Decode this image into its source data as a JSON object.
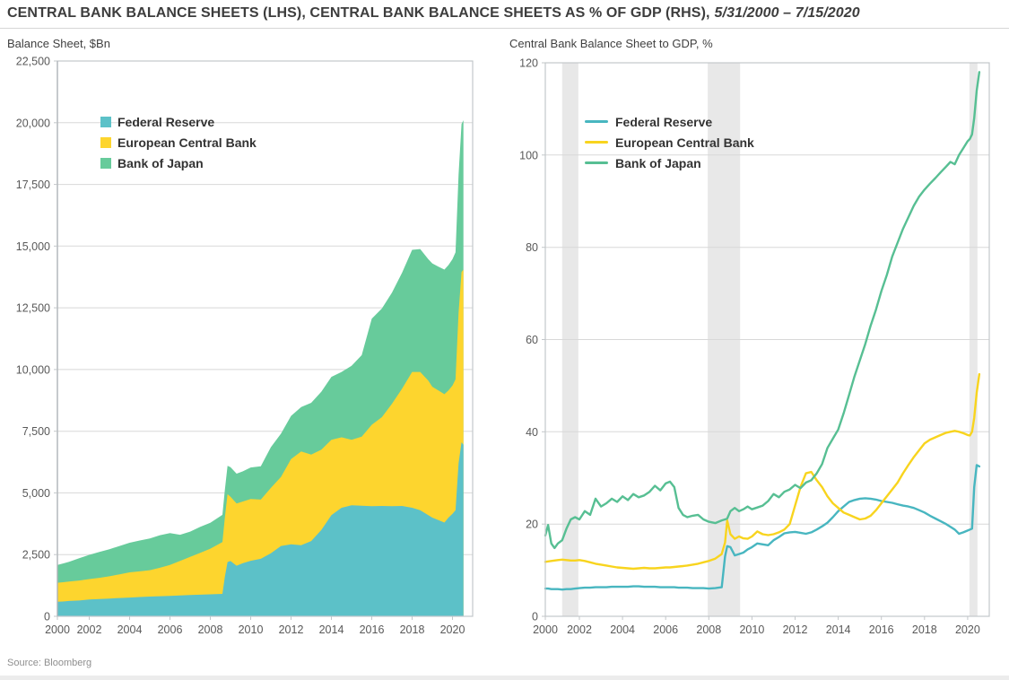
{
  "header": {
    "title": "CENTRAL BANK BALANCE SHEETS (LHS), CENTRAL BANK BALANCE SHEETS AS % OF GDP (RHS),",
    "date_range": "5/31/2000 – 7/15/2020"
  },
  "source": "Source: Bloomberg",
  "colors": {
    "fed_area": "#5cc1c8",
    "ecb_area": "#fdd52e",
    "boj_area": "#67cb9b",
    "fed_line": "#48b6c0",
    "ecb_line": "#f8d41e",
    "boj_line": "#57bf93",
    "grid": "#d8d8d8",
    "band": "#e8e8e8",
    "border": "#c3c7ca",
    "y_axis": "#a9aeb3",
    "axis_text": "#595959"
  },
  "chart_data": [
    {
      "id": "lhs",
      "type": "area",
      "stacked": true,
      "title": "Balance Sheet, $Bn",
      "xlim": [
        2000.42,
        2021
      ],
      "ylim": [
        0,
        22500
      ],
      "grid": true,
      "legend_position": "upper-left-inside",
      "xticks": [
        2000,
        2002,
        2004,
        2006,
        2008,
        2010,
        2012,
        2014,
        2016,
        2018,
        2020
      ],
      "yticks": [
        {
          "v": 0,
          "label": "0"
        },
        {
          "v": 2500,
          "label": "2,500"
        },
        {
          "v": 5000,
          "label": "5,000"
        },
        {
          "v": 7500,
          "label": "7,500"
        },
        {
          "v": 10000,
          "label": "10,000"
        },
        {
          "v": 12500,
          "label": "12,500"
        },
        {
          "v": 15000,
          "label": "15,000"
        },
        {
          "v": 17500,
          "label": "17,500"
        },
        {
          "v": 20000,
          "label": "20,000"
        },
        {
          "v": 22500,
          "label": "22,500"
        }
      ],
      "legend": [
        {
          "name": "Federal Reserve",
          "color": "fed_area",
          "swatch": "square"
        },
        {
          "name": "European Central Bank",
          "color": "ecb_area",
          "swatch": "square"
        },
        {
          "name": "Bank of Japan",
          "color": "boj_area",
          "swatch": "square"
        }
      ],
      "x": [
        2000.42,
        2000.7,
        2001,
        2001.5,
        2002,
        2002.5,
        2003,
        2003.5,
        2004,
        2004.5,
        2005,
        2005.5,
        2006,
        2006.5,
        2007,
        2007.5,
        2008,
        2008.6,
        2008.72,
        2008.85,
        2009,
        2009.3,
        2009.6,
        2010,
        2010.5,
        2011,
        2011.5,
        2012,
        2012.5,
        2013,
        2013.5,
        2014,
        2014.5,
        2015,
        2015.5,
        2016,
        2016.5,
        2017,
        2017.5,
        2018,
        2018.4,
        2018.8,
        2019,
        2019.3,
        2019.6,
        2019.8,
        2020,
        2020.15,
        2020.3,
        2020.45,
        2020.54
      ],
      "series": [
        {
          "name": "Federal Reserve",
          "color": "fed_area",
          "values": [
            590,
            600,
            620,
            640,
            680,
            700,
            720,
            740,
            760,
            780,
            800,
            815,
            830,
            845,
            860,
            875,
            890,
            910,
            1600,
            2200,
            2240,
            2050,
            2150,
            2250,
            2330,
            2550,
            2850,
            2920,
            2880,
            3050,
            3500,
            4100,
            4400,
            4500,
            4480,
            4460,
            4470,
            4460,
            4470,
            4400,
            4300,
            4100,
            4000,
            3900,
            3800,
            4000,
            4150,
            4300,
            6200,
            7050,
            6950
          ]
        },
        {
          "name": "European Central Bank",
          "color": "ecb_area",
          "values": [
            770,
            780,
            790,
            810,
            830,
            860,
            900,
            960,
            1020,
            1040,
            1070,
            1150,
            1250,
            1400,
            1550,
            1700,
            1850,
            2100,
            2400,
            2750,
            2600,
            2520,
            2500,
            2500,
            2400,
            2650,
            2800,
            3450,
            3800,
            3500,
            3250,
            3050,
            2850,
            2650,
            2800,
            3300,
            3600,
            4150,
            4750,
            5500,
            5600,
            5450,
            5300,
            5250,
            5200,
            5150,
            5200,
            5300,
            6100,
            6900,
            7100
          ]
        },
        {
          "name": "Bank of Japan",
          "color": "boj_area",
          "values": [
            720,
            760,
            800,
            900,
            980,
            1050,
            1100,
            1150,
            1200,
            1250,
            1280,
            1320,
            1290,
            1060,
            1020,
            1050,
            1050,
            1100,
            1120,
            1150,
            1200,
            1210,
            1220,
            1280,
            1350,
            1650,
            1750,
            1750,
            1800,
            2100,
            2350,
            2550,
            2650,
            3000,
            3300,
            4300,
            4400,
            4500,
            4700,
            4950,
            4980,
            4920,
            5000,
            5020,
            5050,
            5080,
            5120,
            5150,
            5600,
            6000,
            6050
          ]
        }
      ]
    },
    {
      "id": "rhs",
      "type": "line",
      "title": "Central Bank Balance Sheet to GDP, %",
      "xlim": [
        2000.42,
        2021
      ],
      "ylim": [
        0,
        120
      ],
      "grid": true,
      "legend_position": "upper-left-inside",
      "bands": [
        [
          2001.2,
          2001.95
        ],
        [
          2007.95,
          2009.45
        ],
        [
          2020.08,
          2020.45
        ]
      ],
      "xticks": [
        2000,
        2002,
        2004,
        2006,
        2008,
        2010,
        2012,
        2014,
        2016,
        2018,
        2020
      ],
      "yticks": [
        {
          "v": 0,
          "label": "0"
        },
        {
          "v": 20,
          "label": "20"
        },
        {
          "v": 40,
          "label": "40"
        },
        {
          "v": 60,
          "label": "60"
        },
        {
          "v": 80,
          "label": "80"
        },
        {
          "v": 100,
          "label": "100"
        },
        {
          "v": 120,
          "label": "120"
        }
      ],
      "legend": [
        {
          "name": "Federal Reserve",
          "color": "fed_line",
          "swatch": "line"
        },
        {
          "name": "European Central Bank",
          "color": "ecb_line",
          "swatch": "line"
        },
        {
          "name": "Bank of Japan",
          "color": "boj_line",
          "swatch": "line"
        }
      ],
      "x": [
        2000.42,
        2000.55,
        2000.7,
        2000.85,
        2001,
        2001.2,
        2001.4,
        2001.6,
        2001.8,
        2002,
        2002.25,
        2002.5,
        2002.75,
        2003,
        2003.25,
        2003.5,
        2003.75,
        2004,
        2004.25,
        2004.5,
        2004.75,
        2005,
        2005.25,
        2005.5,
        2005.75,
        2006,
        2006.2,
        2006.4,
        2006.6,
        2006.8,
        2007,
        2007.25,
        2007.5,
        2007.75,
        2008,
        2008.3,
        2008.6,
        2008.75,
        2008.85,
        2009,
        2009.2,
        2009.4,
        2009.6,
        2009.8,
        2010,
        2010.25,
        2010.5,
        2010.75,
        2011,
        2011.25,
        2011.5,
        2011.75,
        2012,
        2012.25,
        2012.5,
        2012.75,
        2013,
        2013.25,
        2013.5,
        2013.75,
        2014,
        2014.25,
        2014.5,
        2014.75,
        2015,
        2015.25,
        2015.5,
        2015.75,
        2016,
        2016.25,
        2016.5,
        2016.75,
        2017,
        2017.25,
        2017.5,
        2017.75,
        2018,
        2018.25,
        2018.5,
        2018.75,
        2019,
        2019.2,
        2019.4,
        2019.6,
        2019.8,
        2020,
        2020.1,
        2020.2,
        2020.3,
        2020.42,
        2020.54
      ],
      "series": [
        {
          "name": "Federal Reserve",
          "color": "fed_line",
          "values": [
            6,
            6,
            5.9,
            5.9,
            5.9,
            5.8,
            5.9,
            5.9,
            6,
            6.1,
            6.2,
            6.2,
            6.3,
            6.3,
            6.3,
            6.4,
            6.4,
            6.4,
            6.4,
            6.5,
            6.5,
            6.4,
            6.4,
            6.4,
            6.3,
            6.3,
            6.3,
            6.3,
            6.2,
            6.2,
            6.2,
            6.1,
            6.1,
            6.1,
            6,
            6.1,
            6.3,
            13,
            15.2,
            15,
            13.2,
            13.5,
            13.8,
            14.5,
            15,
            15.8,
            15.6,
            15.4,
            16.5,
            17.2,
            18,
            18.2,
            18.3,
            18.1,
            17.9,
            18.2,
            18.8,
            19.5,
            20.3,
            21.5,
            22.8,
            23.8,
            24.8,
            25.2,
            25.5,
            25.6,
            25.5,
            25.3,
            25,
            24.8,
            24.6,
            24.3,
            24,
            23.8,
            23.5,
            23,
            22.5,
            21.8,
            21.2,
            20.6,
            20,
            19.4,
            18.8,
            17.9,
            18.2,
            18.6,
            18.8,
            19,
            28,
            32.8,
            32.5
          ]
        },
        {
          "name": "European Central Bank",
          "color": "ecb_line",
          "values": [
            11.8,
            11.9,
            12,
            12.1,
            12.2,
            12.3,
            12.2,
            12.1,
            12.1,
            12.2,
            12,
            11.7,
            11.4,
            11.2,
            11,
            10.8,
            10.6,
            10.5,
            10.4,
            10.3,
            10.4,
            10.5,
            10.4,
            10.4,
            10.5,
            10.6,
            10.6,
            10.7,
            10.8,
            10.9,
            11,
            11.2,
            11.4,
            11.7,
            12,
            12.5,
            13.5,
            16,
            20.8,
            17.8,
            16.8,
            17.3,
            16.9,
            16.8,
            17.3,
            18.4,
            17.8,
            17.6,
            17.8,
            18.2,
            18.8,
            20,
            24,
            28,
            31,
            31.3,
            29.5,
            28,
            26,
            24.5,
            23.5,
            22.5,
            22,
            21.5,
            21,
            21.2,
            21.8,
            23,
            24.5,
            26,
            27.5,
            29,
            31,
            32.8,
            34.5,
            36,
            37.5,
            38.3,
            38.8,
            39.3,
            39.8,
            40,
            40.2,
            40,
            39.7,
            39.3,
            39.2,
            40,
            43,
            48.5,
            52.5
          ]
        },
        {
          "name": "Bank of Japan",
          "color": "boj_line",
          "values": [
            17.5,
            19.8,
            15.8,
            14.8,
            15.8,
            16.5,
            19,
            21,
            21.5,
            21,
            22.8,
            22,
            25.5,
            23.8,
            24.5,
            25.5,
            24.8,
            26,
            25.2,
            26.5,
            25.8,
            26.2,
            27,
            28.3,
            27.3,
            28.8,
            29.2,
            28,
            23.5,
            22,
            21.5,
            21.8,
            22,
            21,
            20.5,
            20.2,
            20.8,
            21,
            21.2,
            22.8,
            23.5,
            22.8,
            23.2,
            23.8,
            23.2,
            23.6,
            24,
            25,
            26.5,
            25.8,
            27,
            27.5,
            28.5,
            27.8,
            29,
            29.5,
            31,
            33,
            36.5,
            38.5,
            40.5,
            44,
            48,
            52,
            55.5,
            59,
            63,
            66.5,
            70.5,
            74,
            78,
            81,
            84,
            86.5,
            89,
            91,
            92.5,
            93.8,
            95,
            96.3,
            97.5,
            98.5,
            98,
            100,
            101.5,
            103,
            103.5,
            104.5,
            108,
            114,
            118
          ]
        }
      ]
    }
  ]
}
